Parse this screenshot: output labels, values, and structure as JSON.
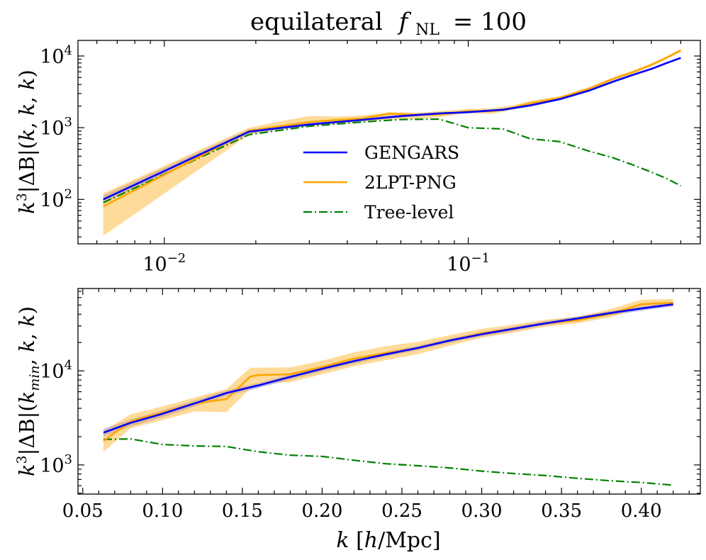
{
  "figure": {
    "title_text": "equilateral",
    "title_fnl_symbol": "f",
    "title_fnl_sub": "NL",
    "title_value": "= 100"
  },
  "chart_data": [
    {
      "type": "line",
      "title": "equilateral f_NL = 100",
      "ylabel": "k^3|ΔB|(k, k, k)",
      "xlabel": "",
      "xscale": "log",
      "yscale": "log",
      "xlim": [
        0.0052,
        0.58
      ],
      "ylim": [
        24,
        16500
      ],
      "grid": false,
      "legend": "center",
      "x_ticks": [
        {
          "value": 0.01,
          "base": "10",
          "exp": "−2"
        },
        {
          "value": 0.1,
          "base": "10",
          "exp": "−1"
        }
      ],
      "y_ticks": [
        {
          "value": 100,
          "base": "10",
          "exp": "2"
        },
        {
          "value": 1000,
          "base": "10",
          "exp": "3"
        },
        {
          "value": 10000,
          "base": "10",
          "exp": "4"
        }
      ],
      "series": [
        {
          "name": "GENGARS",
          "color": "#0000ff",
          "style": "solid",
          "band_color": "#8080ff",
          "x": [
            0.0063,
            0.019,
            0.03,
            0.045,
            0.06,
            0.08,
            0.1,
            0.13,
            0.16,
            0.2,
            0.25,
            0.3,
            0.35,
            0.4,
            0.45,
            0.5
          ],
          "y": [
            100,
            880,
            1110,
            1290,
            1450,
            1580,
            1650,
            1780,
            2050,
            2500,
            3300,
            4400,
            5500,
            6600,
            8000,
            9400
          ],
          "band_low": [
            88,
            820,
            1060,
            1230,
            1390,
            1510,
            1580,
            1700,
            1960,
            2400,
            3180,
            4250,
            5300,
            6400,
            7700,
            9100
          ],
          "band_high": [
            114,
            950,
            1170,
            1360,
            1520,
            1650,
            1720,
            1860,
            2140,
            2600,
            3420,
            4550,
            5700,
            6850,
            8300,
            9750
          ]
        },
        {
          "name": "2LPT-PNG",
          "color": "#ffa500",
          "style": "solid",
          "band_color": "#ffa500",
          "x": [
            0.0063,
            0.019,
            0.024,
            0.03,
            0.037,
            0.045,
            0.055,
            0.068,
            0.08,
            0.1,
            0.12,
            0.14,
            0.16,
            0.18,
            0.2,
            0.25,
            0.3,
            0.35,
            0.4,
            0.45,
            0.5
          ],
          "y": [
            80,
            900,
            1050,
            1200,
            1280,
            1350,
            1570,
            1520,
            1530,
            1700,
            1700,
            1900,
            2200,
            2400,
            2600,
            3500,
            4800,
            6000,
            7500,
            9500,
            12000
          ],
          "band_low": [
            31,
            800,
            950,
            1050,
            1150,
            1220,
            1300,
            1330,
            1400,
            1600,
            1560,
            1780,
            2050,
            2250,
            2470,
            3300,
            4550,
            5700,
            7150,
            9100,
            11400
          ],
          "band_high": [
            122,
            1000,
            1230,
            1450,
            1430,
            1480,
            1650,
            1620,
            1700,
            1820,
            1880,
            2050,
            2370,
            2570,
            2750,
            3700,
            5050,
            6300,
            7900,
            9950,
            12600
          ]
        },
        {
          "name": "Tree-level",
          "color": "#008000",
          "style": "dashdot",
          "x": [
            0.0063,
            0.019,
            0.03,
            0.045,
            0.06,
            0.08,
            0.1,
            0.13,
            0.16,
            0.2,
            0.25,
            0.3,
            0.35,
            0.4,
            0.45,
            0.5
          ],
          "y": [
            90,
            800,
            1050,
            1200,
            1300,
            1320,
            1000,
            960,
            700,
            640,
            470,
            380,
            300,
            240,
            195,
            155
          ]
        }
      ]
    },
    {
      "type": "line",
      "title": "",
      "ylabel": "k^3|ΔB|(k_min, k, k)",
      "xlabel": "k [h/Mpc]",
      "xscale": "linear",
      "yscale": "log",
      "xlim": [
        0.047,
        0.437
      ],
      "ylim": [
        490,
        75000
      ],
      "grid": false,
      "legend": "none",
      "x_ticks": [
        {
          "value": 0.05,
          "label": "0.05"
        },
        {
          "value": 0.1,
          "label": "0.10"
        },
        {
          "value": 0.15,
          "label": "0.15"
        },
        {
          "value": 0.2,
          "label": "0.20"
        },
        {
          "value": 0.25,
          "label": "0.25"
        },
        {
          "value": 0.3,
          "label": "0.30"
        },
        {
          "value": 0.35,
          "label": "0.35"
        },
        {
          "value": 0.4,
          "label": "0.40"
        }
      ],
      "y_ticks": [
        {
          "value": 1000,
          "base": "10",
          "exp": "3"
        },
        {
          "value": 10000,
          "base": "10",
          "exp": "4"
        }
      ],
      "series": [
        {
          "name": "GENGARS",
          "color": "#0000ff",
          "style": "solid",
          "band_color": "#8080ff",
          "x": [
            0.063,
            0.08,
            0.1,
            0.12,
            0.14,
            0.16,
            0.18,
            0.2,
            0.22,
            0.24,
            0.26,
            0.28,
            0.3,
            0.32,
            0.34,
            0.36,
            0.38,
            0.4,
            0.42
          ],
          "y": [
            2200,
            2800,
            3500,
            4500,
            5800,
            7000,
            8600,
            10500,
            12700,
            15000,
            17500,
            21000,
            24500,
            28000,
            32000,
            36000,
            41000,
            46000,
            51000
          ],
          "band_low": [
            2000,
            2560,
            3200,
            4150,
            5400,
            6550,
            8050,
            9850,
            11900,
            14100,
            16500,
            19800,
            23100,
            26400,
            30200,
            34000,
            38700,
            43500,
            48200
          ],
          "band_high": [
            2420,
            3050,
            3800,
            4850,
            6200,
            7450,
            9150,
            11150,
            13500,
            15900,
            18500,
            22200,
            25900,
            29600,
            33800,
            38000,
            43300,
            48500,
            53800
          ]
        },
        {
          "name": "2LPT-PNG",
          "color": "#ffa500",
          "style": "solid",
          "band_color": "#ffa500",
          "x": [
            0.063,
            0.08,
            0.1,
            0.12,
            0.14,
            0.155,
            0.16,
            0.18,
            0.2,
            0.22,
            0.24,
            0.26,
            0.28,
            0.3,
            0.32,
            0.34,
            0.36,
            0.38,
            0.4,
            0.42
          ],
          "y": [
            1800,
            2900,
            3600,
            4500,
            5000,
            8700,
            9000,
            9200,
            11000,
            13500,
            15500,
            17500,
            21000,
            25000,
            28000,
            32000,
            34500,
            40000,
            51000,
            53000
          ],
          "band_low": [
            1380,
            2450,
            3000,
            3700,
            3650,
            6500,
            7300,
            7600,
            9200,
            11200,
            13000,
            15000,
            18500,
            22500,
            25500,
            29500,
            32000,
            37000,
            46000,
            48500
          ],
          "band_high": [
            2300,
            3450,
            4200,
            5200,
            6400,
            10800,
            10800,
            10900,
            12800,
            15700,
            18300,
            20300,
            24000,
            28000,
            31000,
            35000,
            37500,
            45000,
            57000,
            58000
          ]
        },
        {
          "name": "Tree-level",
          "color": "#008000",
          "style": "dashdot",
          "x": [
            0.063,
            0.08,
            0.1,
            0.12,
            0.14,
            0.16,
            0.18,
            0.2,
            0.22,
            0.24,
            0.26,
            0.28,
            0.3,
            0.32,
            0.34,
            0.36,
            0.38,
            0.4,
            0.42
          ],
          "y": [
            1870,
            1890,
            1650,
            1590,
            1570,
            1380,
            1270,
            1230,
            1120,
            1030,
            980,
            930,
            860,
            810,
            770,
            720,
            680,
            650,
            610
          ]
        }
      ]
    }
  ]
}
